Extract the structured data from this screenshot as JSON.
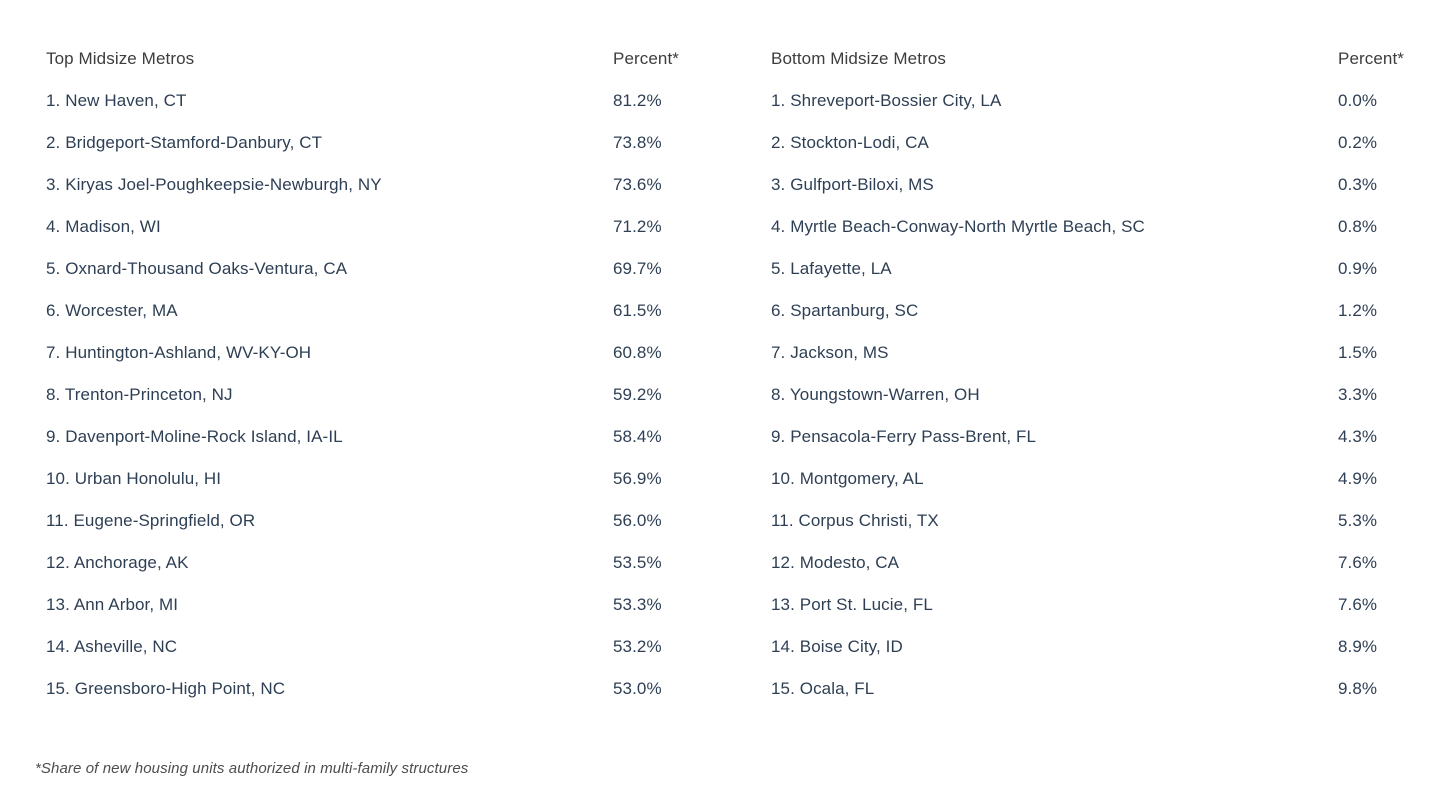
{
  "colors": {
    "background": "#ffffff",
    "header_text": "#3d3d3d",
    "row_text": "#2e3f54",
    "footnote_text": "#4d4d4d"
  },
  "tables": [
    {
      "header": "Top Midsize Metros",
      "percent_header": "Percent*",
      "rows": [
        {
          "label": "1. New Haven, CT",
          "percent": "81.2%"
        },
        {
          "label": "2. Bridgeport-Stamford-Danbury, CT",
          "percent": "73.8%"
        },
        {
          "label": "3. Kiryas Joel-Poughkeepsie-Newburgh, NY",
          "percent": "73.6%"
        },
        {
          "label": "4. Madison, WI",
          "percent": "71.2%"
        },
        {
          "label": "5. Oxnard-Thousand Oaks-Ventura, CA",
          "percent": "69.7%"
        },
        {
          "label": "6. Worcester, MA",
          "percent": "61.5%"
        },
        {
          "label": "7. Huntington-Ashland, WV-KY-OH",
          "percent": "60.8%"
        },
        {
          "label": "8. Trenton-Princeton, NJ",
          "percent": "59.2%"
        },
        {
          "label": "9. Davenport-Moline-Rock Island, IA-IL",
          "percent": "58.4%"
        },
        {
          "label": "10. Urban Honolulu, HI",
          "percent": "56.9%"
        },
        {
          "label": "11. Eugene-Springfield, OR",
          "percent": "56.0%"
        },
        {
          "label": "12. Anchorage, AK",
          "percent": "53.5%"
        },
        {
          "label": "13. Ann Arbor, MI",
          "percent": "53.3%"
        },
        {
          "label": "14. Asheville, NC",
          "percent": "53.2%"
        },
        {
          "label": "15. Greensboro-High Point, NC",
          "percent": "53.0%"
        }
      ]
    },
    {
      "header": "Bottom Midsize Metros",
      "percent_header": "Percent*",
      "rows": [
        {
          "label": "1. Shreveport-Bossier City, LA",
          "percent": "0.0%"
        },
        {
          "label": "2. Stockton-Lodi, CA",
          "percent": "0.2%"
        },
        {
          "label": "3. Gulfport-Biloxi, MS",
          "percent": "0.3%"
        },
        {
          "label": "4. Myrtle Beach-Conway-North Myrtle Beach, SC",
          "percent": "0.8%"
        },
        {
          "label": "5. Lafayette, LA",
          "percent": "0.9%"
        },
        {
          "label": "6. Spartanburg, SC",
          "percent": "1.2%"
        },
        {
          "label": "7. Jackson, MS",
          "percent": "1.5%"
        },
        {
          "label": "8. Youngstown-Warren, OH",
          "percent": "3.3%"
        },
        {
          "label": "9. Pensacola-Ferry Pass-Brent, FL",
          "percent": "4.3%"
        },
        {
          "label": "10. Montgomery, AL",
          "percent": "4.9%"
        },
        {
          "label": "11. Corpus Christi, TX",
          "percent": "5.3%"
        },
        {
          "label": "12. Modesto, CA",
          "percent": "7.6%"
        },
        {
          "label": "13. Port St. Lucie, FL",
          "percent": "7.6%"
        },
        {
          "label": "14. Boise City, ID",
          "percent": "8.9%"
        },
        {
          "label": "15. Ocala, FL",
          "percent": "9.8%"
        }
      ]
    }
  ],
  "footnote": "*Share of new housing units authorized in multi-family structures"
}
